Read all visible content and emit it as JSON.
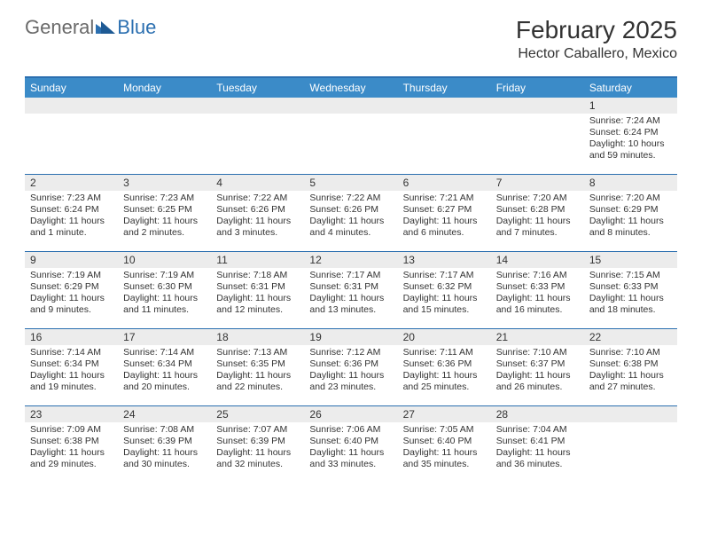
{
  "logo": {
    "text_general": "General",
    "text_blue": "Blue"
  },
  "title": {
    "month": "February 2025",
    "location": "Hector Caballero, Mexico"
  },
  "colors": {
    "header_bar": "#3b8bc8",
    "accent_line": "#2b6fb0",
    "num_row_bg": "#ececec",
    "text": "#333333",
    "background": "#ffffff"
  },
  "typography": {
    "month_title_fontsize": 28,
    "location_fontsize": 16,
    "day_header_fontsize": 12,
    "day_num_fontsize": 12,
    "body_fontsize": 10.5
  },
  "day_headers": [
    "Sunday",
    "Monday",
    "Tuesday",
    "Wednesday",
    "Thursday",
    "Friday",
    "Saturday"
  ],
  "weeks": [
    [
      {
        "num": "",
        "lines": []
      },
      {
        "num": "",
        "lines": []
      },
      {
        "num": "",
        "lines": []
      },
      {
        "num": "",
        "lines": []
      },
      {
        "num": "",
        "lines": []
      },
      {
        "num": "",
        "lines": []
      },
      {
        "num": "1",
        "lines": [
          "Sunrise: 7:24 AM",
          "Sunset: 6:24 PM",
          "Daylight: 10 hours",
          "and 59 minutes."
        ]
      }
    ],
    [
      {
        "num": "2",
        "lines": [
          "Sunrise: 7:23 AM",
          "Sunset: 6:24 PM",
          "Daylight: 11 hours",
          "and 1 minute."
        ]
      },
      {
        "num": "3",
        "lines": [
          "Sunrise: 7:23 AM",
          "Sunset: 6:25 PM",
          "Daylight: 11 hours",
          "and 2 minutes."
        ]
      },
      {
        "num": "4",
        "lines": [
          "Sunrise: 7:22 AM",
          "Sunset: 6:26 PM",
          "Daylight: 11 hours",
          "and 3 minutes."
        ]
      },
      {
        "num": "5",
        "lines": [
          "Sunrise: 7:22 AM",
          "Sunset: 6:26 PM",
          "Daylight: 11 hours",
          "and 4 minutes."
        ]
      },
      {
        "num": "6",
        "lines": [
          "Sunrise: 7:21 AM",
          "Sunset: 6:27 PM",
          "Daylight: 11 hours",
          "and 6 minutes."
        ]
      },
      {
        "num": "7",
        "lines": [
          "Sunrise: 7:20 AM",
          "Sunset: 6:28 PM",
          "Daylight: 11 hours",
          "and 7 minutes."
        ]
      },
      {
        "num": "8",
        "lines": [
          "Sunrise: 7:20 AM",
          "Sunset: 6:29 PM",
          "Daylight: 11 hours",
          "and 8 minutes."
        ]
      }
    ],
    [
      {
        "num": "9",
        "lines": [
          "Sunrise: 7:19 AM",
          "Sunset: 6:29 PM",
          "Daylight: 11 hours",
          "and 9 minutes."
        ]
      },
      {
        "num": "10",
        "lines": [
          "Sunrise: 7:19 AM",
          "Sunset: 6:30 PM",
          "Daylight: 11 hours",
          "and 11 minutes."
        ]
      },
      {
        "num": "11",
        "lines": [
          "Sunrise: 7:18 AM",
          "Sunset: 6:31 PM",
          "Daylight: 11 hours",
          "and 12 minutes."
        ]
      },
      {
        "num": "12",
        "lines": [
          "Sunrise: 7:17 AM",
          "Sunset: 6:31 PM",
          "Daylight: 11 hours",
          "and 13 minutes."
        ]
      },
      {
        "num": "13",
        "lines": [
          "Sunrise: 7:17 AM",
          "Sunset: 6:32 PM",
          "Daylight: 11 hours",
          "and 15 minutes."
        ]
      },
      {
        "num": "14",
        "lines": [
          "Sunrise: 7:16 AM",
          "Sunset: 6:33 PM",
          "Daylight: 11 hours",
          "and 16 minutes."
        ]
      },
      {
        "num": "15",
        "lines": [
          "Sunrise: 7:15 AM",
          "Sunset: 6:33 PM",
          "Daylight: 11 hours",
          "and 18 minutes."
        ]
      }
    ],
    [
      {
        "num": "16",
        "lines": [
          "Sunrise: 7:14 AM",
          "Sunset: 6:34 PM",
          "Daylight: 11 hours",
          "and 19 minutes."
        ]
      },
      {
        "num": "17",
        "lines": [
          "Sunrise: 7:14 AM",
          "Sunset: 6:34 PM",
          "Daylight: 11 hours",
          "and 20 minutes."
        ]
      },
      {
        "num": "18",
        "lines": [
          "Sunrise: 7:13 AM",
          "Sunset: 6:35 PM",
          "Daylight: 11 hours",
          "and 22 minutes."
        ]
      },
      {
        "num": "19",
        "lines": [
          "Sunrise: 7:12 AM",
          "Sunset: 6:36 PM",
          "Daylight: 11 hours",
          "and 23 minutes."
        ]
      },
      {
        "num": "20",
        "lines": [
          "Sunrise: 7:11 AM",
          "Sunset: 6:36 PM",
          "Daylight: 11 hours",
          "and 25 minutes."
        ]
      },
      {
        "num": "21",
        "lines": [
          "Sunrise: 7:10 AM",
          "Sunset: 6:37 PM",
          "Daylight: 11 hours",
          "and 26 minutes."
        ]
      },
      {
        "num": "22",
        "lines": [
          "Sunrise: 7:10 AM",
          "Sunset: 6:38 PM",
          "Daylight: 11 hours",
          "and 27 minutes."
        ]
      }
    ],
    [
      {
        "num": "23",
        "lines": [
          "Sunrise: 7:09 AM",
          "Sunset: 6:38 PM",
          "Daylight: 11 hours",
          "and 29 minutes."
        ]
      },
      {
        "num": "24",
        "lines": [
          "Sunrise: 7:08 AM",
          "Sunset: 6:39 PM",
          "Daylight: 11 hours",
          "and 30 minutes."
        ]
      },
      {
        "num": "25",
        "lines": [
          "Sunrise: 7:07 AM",
          "Sunset: 6:39 PM",
          "Daylight: 11 hours",
          "and 32 minutes."
        ]
      },
      {
        "num": "26",
        "lines": [
          "Sunrise: 7:06 AM",
          "Sunset: 6:40 PM",
          "Daylight: 11 hours",
          "and 33 minutes."
        ]
      },
      {
        "num": "27",
        "lines": [
          "Sunrise: 7:05 AM",
          "Sunset: 6:40 PM",
          "Daylight: 11 hours",
          "and 35 minutes."
        ]
      },
      {
        "num": "28",
        "lines": [
          "Sunrise: 7:04 AM",
          "Sunset: 6:41 PM",
          "Daylight: 11 hours",
          "and 36 minutes."
        ]
      },
      {
        "num": "",
        "lines": []
      }
    ]
  ]
}
